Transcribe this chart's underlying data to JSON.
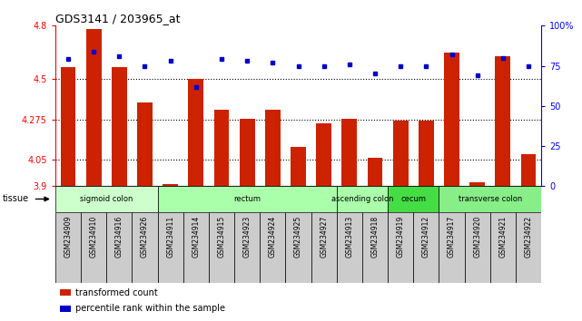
{
  "title": "GDS3141 / 203965_at",
  "samples": [
    "GSM234909",
    "GSM234910",
    "GSM234916",
    "GSM234926",
    "GSM234911",
    "GSM234914",
    "GSM234915",
    "GSM234923",
    "GSM234924",
    "GSM234925",
    "GSM234927",
    "GSM234913",
    "GSM234918",
    "GSM234919",
    "GSM234912",
    "GSM234917",
    "GSM234920",
    "GSM234921",
    "GSM234922"
  ],
  "red_values": [
    4.57,
    4.78,
    4.57,
    4.37,
    3.91,
    4.5,
    4.33,
    4.28,
    4.33,
    4.12,
    4.25,
    4.28,
    4.06,
    4.27,
    4.27,
    4.65,
    3.92,
    4.63,
    4.08
  ],
  "blue_values": [
    79,
    84,
    81,
    75,
    78,
    62,
    79,
    78,
    77,
    75,
    75,
    76,
    70,
    75,
    75,
    82,
    69,
    80,
    75
  ],
  "ylim_left": [
    3.9,
    4.8
  ],
  "ylim_right": [
    0,
    100
  ],
  "yticks_left": [
    3.9,
    4.05,
    4.275,
    4.5,
    4.8
  ],
  "yticks_right": [
    0,
    25,
    50,
    75,
    100
  ],
  "ytick_labels_left": [
    "3.9",
    "4.05",
    "4.275",
    "4.5",
    "4.8"
  ],
  "ytick_labels_right": [
    "0",
    "25",
    "50",
    "75",
    "100%"
  ],
  "hlines": [
    4.05,
    4.275,
    4.5
  ],
  "tissue_groups": [
    {
      "label": "sigmoid colon",
      "start": 0,
      "end": 4,
      "color": "#ccffcc"
    },
    {
      "label": "rectum",
      "start": 4,
      "end": 11,
      "color": "#aaffaa"
    },
    {
      "label": "ascending colon",
      "start": 11,
      "end": 13,
      "color": "#aaffaa"
    },
    {
      "label": "cecum",
      "start": 13,
      "end": 15,
      "color": "#44dd44"
    },
    {
      "label": "transverse colon",
      "start": 15,
      "end": 19,
      "color": "#88ee88"
    }
  ],
  "bar_color": "#cc2200",
  "dot_color": "#0000cc",
  "bar_width": 0.6,
  "base_value": 3.9,
  "legend_items": [
    {
      "color": "#cc2200",
      "label": "transformed count"
    },
    {
      "color": "#0000cc",
      "label": "percentile rank within the sample"
    }
  ],
  "fig_width": 6.41,
  "fig_height": 3.54,
  "dpi": 100
}
